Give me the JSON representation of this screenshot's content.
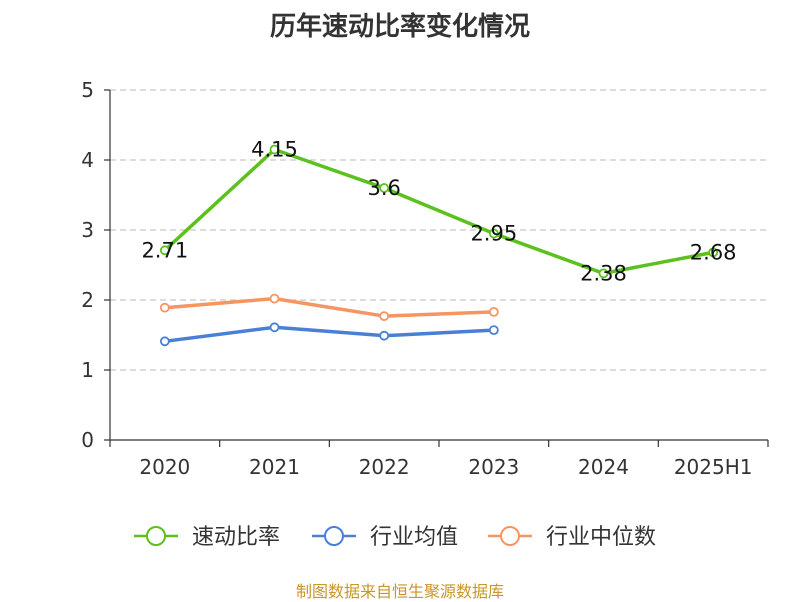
{
  "chart_data": {
    "type": "line",
    "title": "历年速动比率变化情况",
    "xlabel": "",
    "ylabel": "",
    "categories": [
      "2020",
      "2021",
      "2022",
      "2023",
      "2024",
      "2025H1"
    ],
    "ylim": [
      0,
      5
    ],
    "yticks": [
      0,
      1,
      2,
      3,
      4,
      5
    ],
    "grid": true,
    "legend_position": "bottom",
    "series": [
      {
        "name": "速动比率",
        "color": "#5cc11f",
        "values": [
          2.71,
          4.15,
          3.6,
          2.95,
          2.38,
          2.68
        ],
        "labels": [
          "2.71",
          "4.15",
          "3.6",
          "2.95",
          "2.38",
          "2.68"
        ]
      },
      {
        "name": "行业均值",
        "color": "#4a7fd6",
        "values": [
          1.41,
          1.61,
          1.49,
          1.57,
          null,
          null
        ]
      },
      {
        "name": "行业中位数",
        "color": "#f59662",
        "values": [
          1.89,
          2.02,
          1.77,
          1.83,
          null,
          null
        ]
      }
    ]
  },
  "footer": "制图数据来自恒生聚源数据库"
}
